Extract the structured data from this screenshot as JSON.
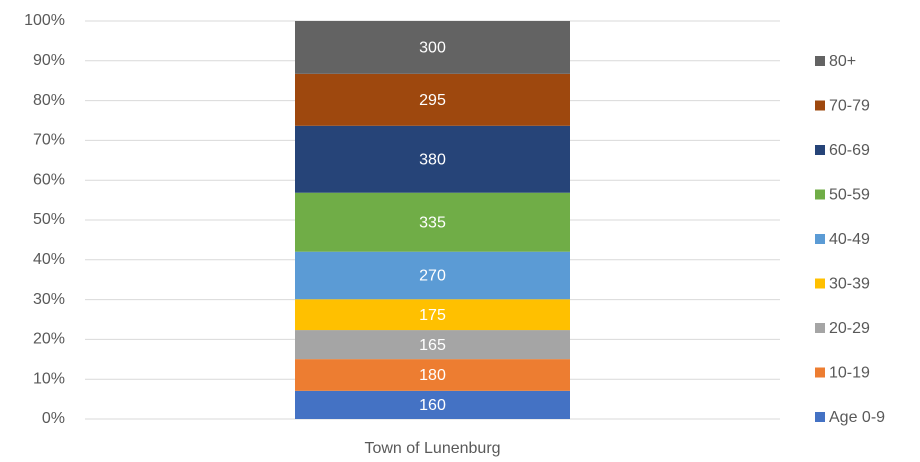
{
  "chart_data": {
    "type": "stacked_percent_bar",
    "categories": [
      "Town of Lunenburg"
    ],
    "series": [
      {
        "name": "Age 0-9",
        "color": "#4472c4",
        "values": [
          160
        ]
      },
      {
        "name": "10-19",
        "color": "#ed7d31",
        "values": [
          180
        ]
      },
      {
        "name": "20-29",
        "color": "#a5a5a5",
        "values": [
          165
        ]
      },
      {
        "name": "30-39",
        "color": "#ffc000",
        "values": [
          175
        ]
      },
      {
        "name": "40-49",
        "color": "#5b9bd5",
        "values": [
          270
        ]
      },
      {
        "name": "50-59",
        "color": "#70ad47",
        "values": [
          335
        ]
      },
      {
        "name": "60-69",
        "color": "#264478",
        "values": [
          380
        ]
      },
      {
        "name": "70-79",
        "color": "#9e480e",
        "values": [
          295
        ]
      },
      {
        "name": "80+",
        "color": "#636363",
        "values": [
          300
        ]
      }
    ],
    "ylim": [
      0,
      100
    ],
    "yticks": [
      {
        "value": 0,
        "label": "0%"
      },
      {
        "value": 10,
        "label": "10%"
      },
      {
        "value": 20,
        "label": "20%"
      },
      {
        "value": 30,
        "label": "30%"
      },
      {
        "value": 40,
        "label": "40%"
      },
      {
        "value": 50,
        "label": "50%"
      },
      {
        "value": 60,
        "label": "60%"
      },
      {
        "value": 70,
        "label": "70%"
      },
      {
        "value": 80,
        "label": "80%"
      },
      {
        "value": 90,
        "label": "90%"
      },
      {
        "value": 100,
        "label": "100%"
      }
    ],
    "grid": true,
    "legend": "right"
  }
}
